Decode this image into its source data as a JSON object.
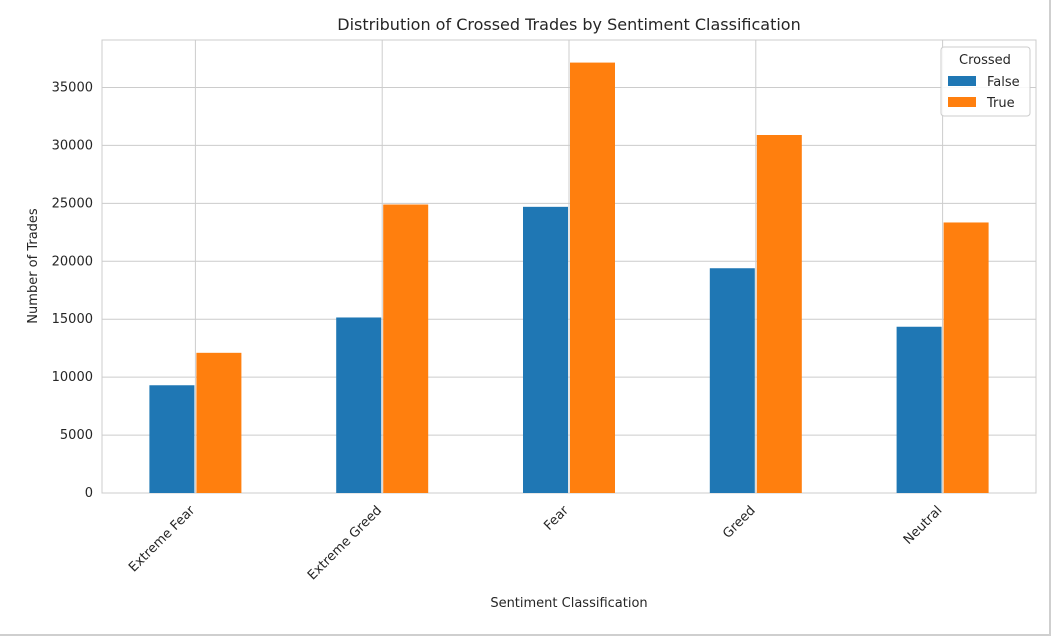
{
  "chart_data": {
    "type": "bar",
    "title": "Distribution of Crossed Trades by Sentiment Classification",
    "xlabel": "Sentiment Classification",
    "ylabel": "Number of Trades",
    "categories": [
      "Extreme Fear",
      "Extreme Greed",
      "Fear",
      "Greed",
      "Neutral"
    ],
    "series": [
      {
        "name": "False",
        "color": "#1f77b4",
        "values": [
          9300,
          15150,
          24700,
          19400,
          14350
        ]
      },
      {
        "name": "True",
        "color": "#ff7f0e",
        "values": [
          12100,
          24900,
          37150,
          30900,
          23350
        ]
      }
    ],
    "ylim": [
      0,
      39100
    ],
    "yticks": [
      0,
      5000,
      10000,
      15000,
      20000,
      25000,
      30000,
      35000
    ],
    "grid": true,
    "legend": {
      "title": "Crossed",
      "position": "top-right"
    }
  }
}
